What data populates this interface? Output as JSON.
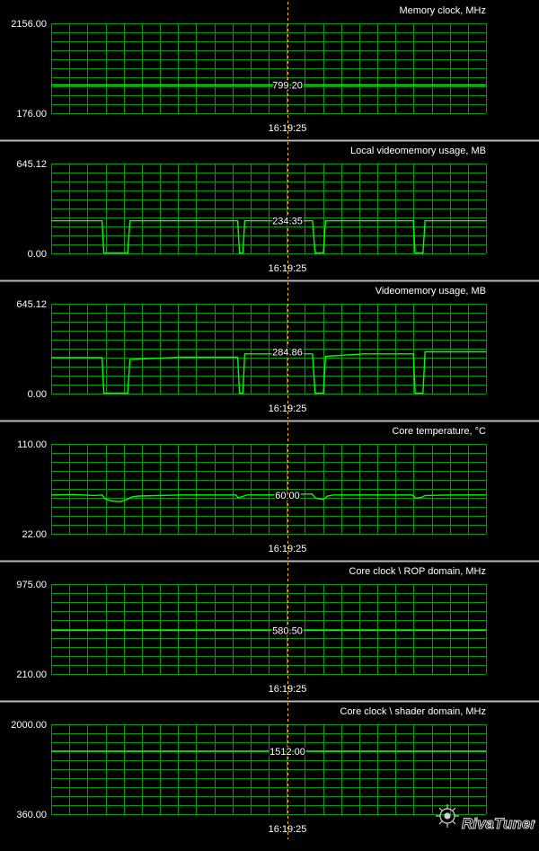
{
  "window": {
    "colors": {
      "background": "#000000",
      "grid": "#00a000",
      "trace": "#00ff00",
      "text": "#ffffff",
      "separator": "#b8b8b8",
      "cursor": "#ffc000"
    },
    "cursor_time": "16:19:25",
    "logo_text": "RivaTuner"
  },
  "chart_data": [
    {
      "type": "line",
      "title": "Memory clock, MHz",
      "ylim": [
        176.0,
        2156.0
      ],
      "ymax_label": "2156.00",
      "ymin_label": "176.00",
      "current_label": "799.20",
      "x": [
        0,
        100
      ],
      "series": [
        {
          "values": [
            799.2,
            799.2
          ]
        }
      ]
    },
    {
      "type": "line",
      "title": "Local videomemory usage, MB",
      "ylim": [
        0.0,
        645.12
      ],
      "ymax_label": "645.12",
      "ymin_label": "0.00",
      "current_label": "234.35",
      "x": [
        0,
        11.7,
        12.1,
        17.6,
        18.1,
        42.9,
        43.3,
        44.1,
        44.5,
        60.1,
        60.7,
        62.6,
        63.1,
        83.3,
        83.7,
        85.5,
        86.0,
        100
      ],
      "series": [
        {
          "values": [
            234.35,
            234.35,
            3,
            3,
            234.35,
            234.35,
            3,
            3,
            234.35,
            234.35,
            3,
            3,
            234.35,
            234.35,
            3,
            3,
            234.35,
            234.35
          ]
        }
      ]
    },
    {
      "type": "line",
      "title": "Videomemory usage, MB",
      "ylim": [
        0.0,
        645.12
      ],
      "ymax_label": "645.12",
      "ymin_label": "0.00",
      "current_label": "284.86",
      "x": [
        0,
        11.7,
        12.1,
        17.6,
        18.1,
        30,
        42.9,
        43.3,
        44.1,
        44.5,
        60.1,
        60.7,
        62.6,
        63.1,
        72,
        83.3,
        83.7,
        85.5,
        86.0,
        100
      ],
      "series": [
        {
          "values": [
            258,
            258,
            3,
            3,
            245,
            262,
            262,
            3,
            3,
            284.86,
            284.86,
            3,
            3,
            268,
            284.86,
            284.86,
            3,
            3,
            300,
            300
          ]
        }
      ]
    },
    {
      "type": "line",
      "title": "Core temperature, °C",
      "ylim": [
        22.0,
        110.0
      ],
      "ymax_label": "110.00",
      "ymin_label": "22.00",
      "current_label": "60.00",
      "x": [
        0,
        5,
        10,
        11.7,
        12.5,
        14,
        16,
        17.6,
        18.5,
        20,
        30,
        42.5,
        43.0,
        44.0,
        45.0,
        50,
        60.0,
        60.8,
        62.6,
        63.5,
        65,
        75,
        83.0,
        83.8,
        85.0,
        86.0,
        92,
        100
      ],
      "series": [
        {
          "values": [
            60,
            60.5,
            59.5,
            60,
            56,
            54,
            53.5,
            56,
            58,
            59,
            60,
            60,
            57,
            58.5,
            60,
            60,
            61,
            57,
            55.5,
            59,
            60,
            60,
            60,
            57,
            57.5,
            59.5,
            60,
            60
          ]
        }
      ]
    },
    {
      "type": "line",
      "title": "Core clock \\ ROP domain, MHz",
      "ylim": [
        210.0,
        975.0
      ],
      "ymax_label": "975.00",
      "ymin_label": "210.00",
      "current_label": "580.50",
      "x": [
        0,
        100
      ],
      "series": [
        {
          "values": [
            580.5,
            580.5
          ]
        }
      ]
    },
    {
      "type": "line",
      "title": "Core clock \\ shader domain, MHz",
      "ylim": [
        360.0,
        2000.0
      ],
      "ymax_label": "2000.00",
      "ymin_label": "360.00",
      "current_label": "1512.00",
      "x": [
        0,
        100
      ],
      "series": [
        {
          "values": [
            1512.0,
            1512.0
          ]
        }
      ]
    }
  ]
}
